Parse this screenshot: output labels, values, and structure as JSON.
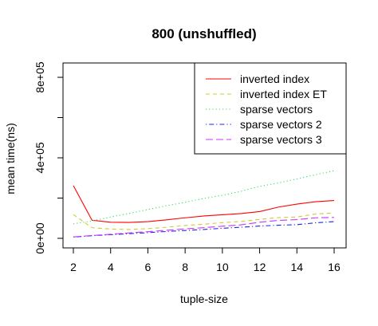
{
  "chart_data": {
    "type": "line",
    "title": "800 (unshuffled)",
    "xlabel": "tuple-size",
    "ylabel": "mean time(ns)",
    "xlim": [
      2,
      16
    ],
    "ylim": [
      0,
      800000
    ],
    "xticks": [
      {
        "value": 2,
        "label": "2"
      },
      {
        "value": 4,
        "label": "4"
      },
      {
        "value": 6,
        "label": "6"
      },
      {
        "value": 8,
        "label": "8"
      },
      {
        "value": 10,
        "label": "10"
      },
      {
        "value": 12,
        "label": "12"
      },
      {
        "value": 14,
        "label": "14"
      },
      {
        "value": 16,
        "label": "16"
      }
    ],
    "yticks": [
      {
        "value": 0,
        "label": "0e+00",
        "labeled": true
      },
      {
        "value": 200000,
        "label": "",
        "labeled": false
      },
      {
        "value": 400000,
        "label": "4e+05",
        "labeled": true
      },
      {
        "value": 600000,
        "label": "",
        "labeled": false
      },
      {
        "value": 800000,
        "label": "8e+05",
        "labeled": true
      }
    ],
    "grid": false,
    "legend_position": "top-right",
    "x": [
      2,
      3,
      4,
      5,
      6,
      7,
      8,
      9,
      10,
      11,
      12,
      13,
      14,
      15,
      16
    ],
    "series": [
      {
        "name": "inverted index",
        "color": "#ff0000",
        "dash": "solid",
        "values": [
          262000,
          90000,
          80000,
          79000,
          83000,
          92000,
          102000,
          111000,
          117000,
          123000,
          133000,
          155000,
          170000,
          182000,
          188000
        ]
      },
      {
        "name": "inverted index ET",
        "color": "#cccc33",
        "dash": "dashed",
        "values": [
          118000,
          53000,
          46000,
          44000,
          48000,
          55000,
          64000,
          70000,
          78000,
          84000,
          94000,
          103000,
          106000,
          121000,
          126000
        ]
      },
      {
        "name": "sparse vectors",
        "color": "#33dd66",
        "dash": "dotted",
        "values": [
          72000,
          86000,
          106000,
          124000,
          143000,
          162000,
          179000,
          198000,
          214000,
          234000,
          258000,
          275000,
          295000,
          316000,
          336000
        ]
      },
      {
        "name": "sparse vectors 2",
        "color": "#2222ee",
        "dash": "dotdash",
        "values": [
          6000,
          13000,
          18000,
          23000,
          28000,
          34000,
          39000,
          44000,
          50000,
          55000,
          61000,
          65000,
          68000,
          77000,
          83000
        ]
      },
      {
        "name": "sparse vectors 3",
        "color": "#cc33ff",
        "dash": "longdash",
        "values": [
          7000,
          14000,
          20000,
          27000,
          33000,
          40000,
          47000,
          53000,
          60000,
          67000,
          80000,
          89000,
          93000,
          102000,
          104000
        ]
      }
    ]
  }
}
